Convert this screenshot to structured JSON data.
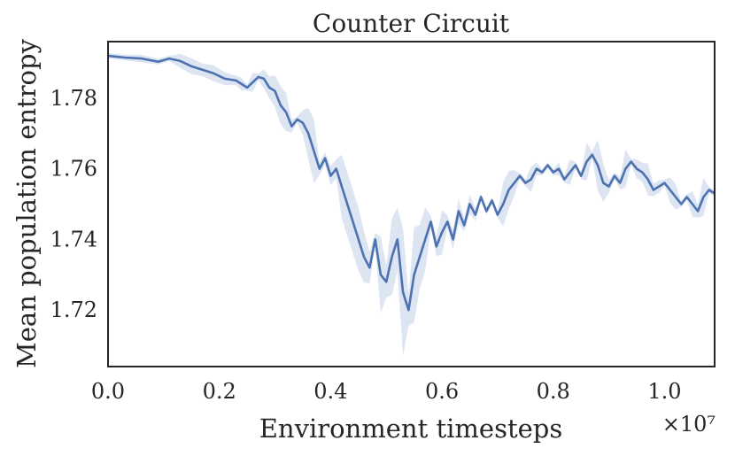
{
  "chart_data": {
    "type": "line",
    "title": "Counter Circuit",
    "xlabel": "Environment timesteps",
    "ylabel": "Mean population entropy",
    "x_offset_label": "×10⁷",
    "xlim": [
      0.0,
      1.09
    ],
    "ylim": [
      1.704,
      1.796
    ],
    "xticks": [
      0.0,
      0.2,
      0.4,
      0.6,
      0.8,
      1.0
    ],
    "xtick_labels": [
      "0.0",
      "0.2",
      "0.4",
      "0.6",
      "0.8",
      "1.0"
    ],
    "yticks": [
      1.72,
      1.74,
      1.76,
      1.78
    ],
    "ytick_labels": [
      "1.72",
      "1.74",
      "1.76",
      "1.78"
    ],
    "grid": false,
    "series": [
      {
        "color": "#4c72b0",
        "band_color": "#c8d4ea",
        "points": [
          [
            0.0,
            1.792
          ],
          [
            0.03,
            1.7915
          ],
          [
            0.06,
            1.7912
          ],
          [
            0.09,
            1.7903
          ],
          [
            0.11,
            1.7912
          ],
          [
            0.13,
            1.7905
          ],
          [
            0.15,
            1.789
          ],
          [
            0.17,
            1.788
          ],
          [
            0.19,
            1.787
          ],
          [
            0.21,
            1.7855
          ],
          [
            0.23,
            1.785
          ],
          [
            0.24,
            1.784
          ],
          [
            0.25,
            1.783
          ],
          [
            0.26,
            1.7845
          ],
          [
            0.27,
            1.786
          ],
          [
            0.28,
            1.7855
          ],
          [
            0.29,
            1.783
          ],
          [
            0.3,
            1.782
          ],
          [
            0.31,
            1.778
          ],
          [
            0.32,
            1.776
          ],
          [
            0.33,
            1.772
          ],
          [
            0.34,
            1.774
          ],
          [
            0.35,
            1.773
          ],
          [
            0.36,
            1.77
          ],
          [
            0.37,
            1.765
          ],
          [
            0.38,
            1.76
          ],
          [
            0.39,
            1.763
          ],
          [
            0.4,
            1.758
          ],
          [
            0.41,
            1.76
          ],
          [
            0.42,
            1.755
          ],
          [
            0.43,
            1.75
          ],
          [
            0.44,
            1.745
          ],
          [
            0.45,
            1.74
          ],
          [
            0.46,
            1.735
          ],
          [
            0.47,
            1.732
          ],
          [
            0.48,
            1.74
          ],
          [
            0.49,
            1.73
          ],
          [
            0.5,
            1.728
          ],
          [
            0.51,
            1.735
          ],
          [
            0.52,
            1.74
          ],
          [
            0.53,
            1.725
          ],
          [
            0.54,
            1.72
          ],
          [
            0.55,
            1.73
          ],
          [
            0.56,
            1.735
          ],
          [
            0.57,
            1.74
          ],
          [
            0.58,
            1.745
          ],
          [
            0.59,
            1.738
          ],
          [
            0.6,
            1.742
          ],
          [
            0.61,
            1.745
          ],
          [
            0.62,
            1.74
          ],
          [
            0.63,
            1.748
          ],
          [
            0.64,
            1.744
          ],
          [
            0.65,
            1.75
          ],
          [
            0.66,
            1.747
          ],
          [
            0.67,
            1.752
          ],
          [
            0.68,
            1.748
          ],
          [
            0.69,
            1.751
          ],
          [
            0.7,
            1.747
          ],
          [
            0.71,
            1.75
          ],
          [
            0.72,
            1.754
          ],
          [
            0.73,
            1.756
          ],
          [
            0.74,
            1.758
          ],
          [
            0.75,
            1.756
          ],
          [
            0.76,
            1.757
          ],
          [
            0.77,
            1.76
          ],
          [
            0.78,
            1.759
          ],
          [
            0.79,
            1.761
          ],
          [
            0.8,
            1.759
          ],
          [
            0.81,
            1.76
          ],
          [
            0.82,
            1.757
          ],
          [
            0.83,
            1.759
          ],
          [
            0.84,
            1.761
          ],
          [
            0.85,
            1.758
          ],
          [
            0.86,
            1.762
          ],
          [
            0.87,
            1.764
          ],
          [
            0.88,
            1.761
          ],
          [
            0.89,
            1.756
          ],
          [
            0.9,
            1.755
          ],
          [
            0.91,
            1.758
          ],
          [
            0.92,
            1.756
          ],
          [
            0.93,
            1.76
          ],
          [
            0.94,
            1.762
          ],
          [
            0.95,
            1.76
          ],
          [
            0.96,
            1.759
          ],
          [
            0.97,
            1.757
          ],
          [
            0.98,
            1.754
          ],
          [
            0.99,
            1.755
          ],
          [
            1.0,
            1.756
          ],
          [
            1.01,
            1.754
          ],
          [
            1.02,
            1.752
          ],
          [
            1.03,
            1.75
          ],
          [
            1.04,
            1.752
          ],
          [
            1.05,
            1.75
          ],
          [
            1.06,
            1.748
          ],
          [
            1.07,
            1.752
          ],
          [
            1.08,
            1.754
          ],
          [
            1.09,
            1.753
          ]
        ]
      }
    ]
  }
}
